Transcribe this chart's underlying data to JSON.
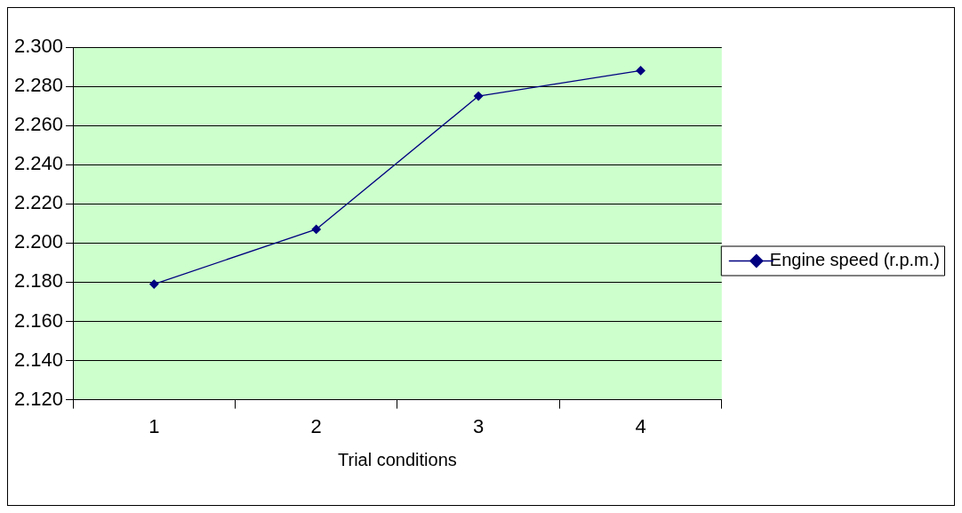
{
  "chart_data": {
    "type": "line",
    "xlabel": "Trial conditions",
    "categories": [
      "1",
      "2",
      "3",
      "4"
    ],
    "series": [
      {
        "name": "Engine speed (r.p.m.)",
        "color": "#000080",
        "values": [
          2.179,
          2.207,
          2.275,
          2.288
        ]
      }
    ],
    "ylim": [
      2.12,
      2.3
    ],
    "yticks": [
      {
        "value": 2.12,
        "label": "2.120"
      },
      {
        "value": 2.14,
        "label": "2.140"
      },
      {
        "value": 2.16,
        "label": "2.160"
      },
      {
        "value": 2.18,
        "label": "2.180"
      },
      {
        "value": 2.2,
        "label": "2.200"
      },
      {
        "value": 2.22,
        "label": "2.220"
      },
      {
        "value": 2.24,
        "label": "2.240"
      },
      {
        "value": 2.26,
        "label": "2.260"
      },
      {
        "value": 2.28,
        "label": "2.280"
      },
      {
        "value": 2.3,
        "label": "2.300"
      }
    ],
    "grid": "y",
    "legend": "right",
    "marker": "diamond",
    "line_style": "solid"
  }
}
